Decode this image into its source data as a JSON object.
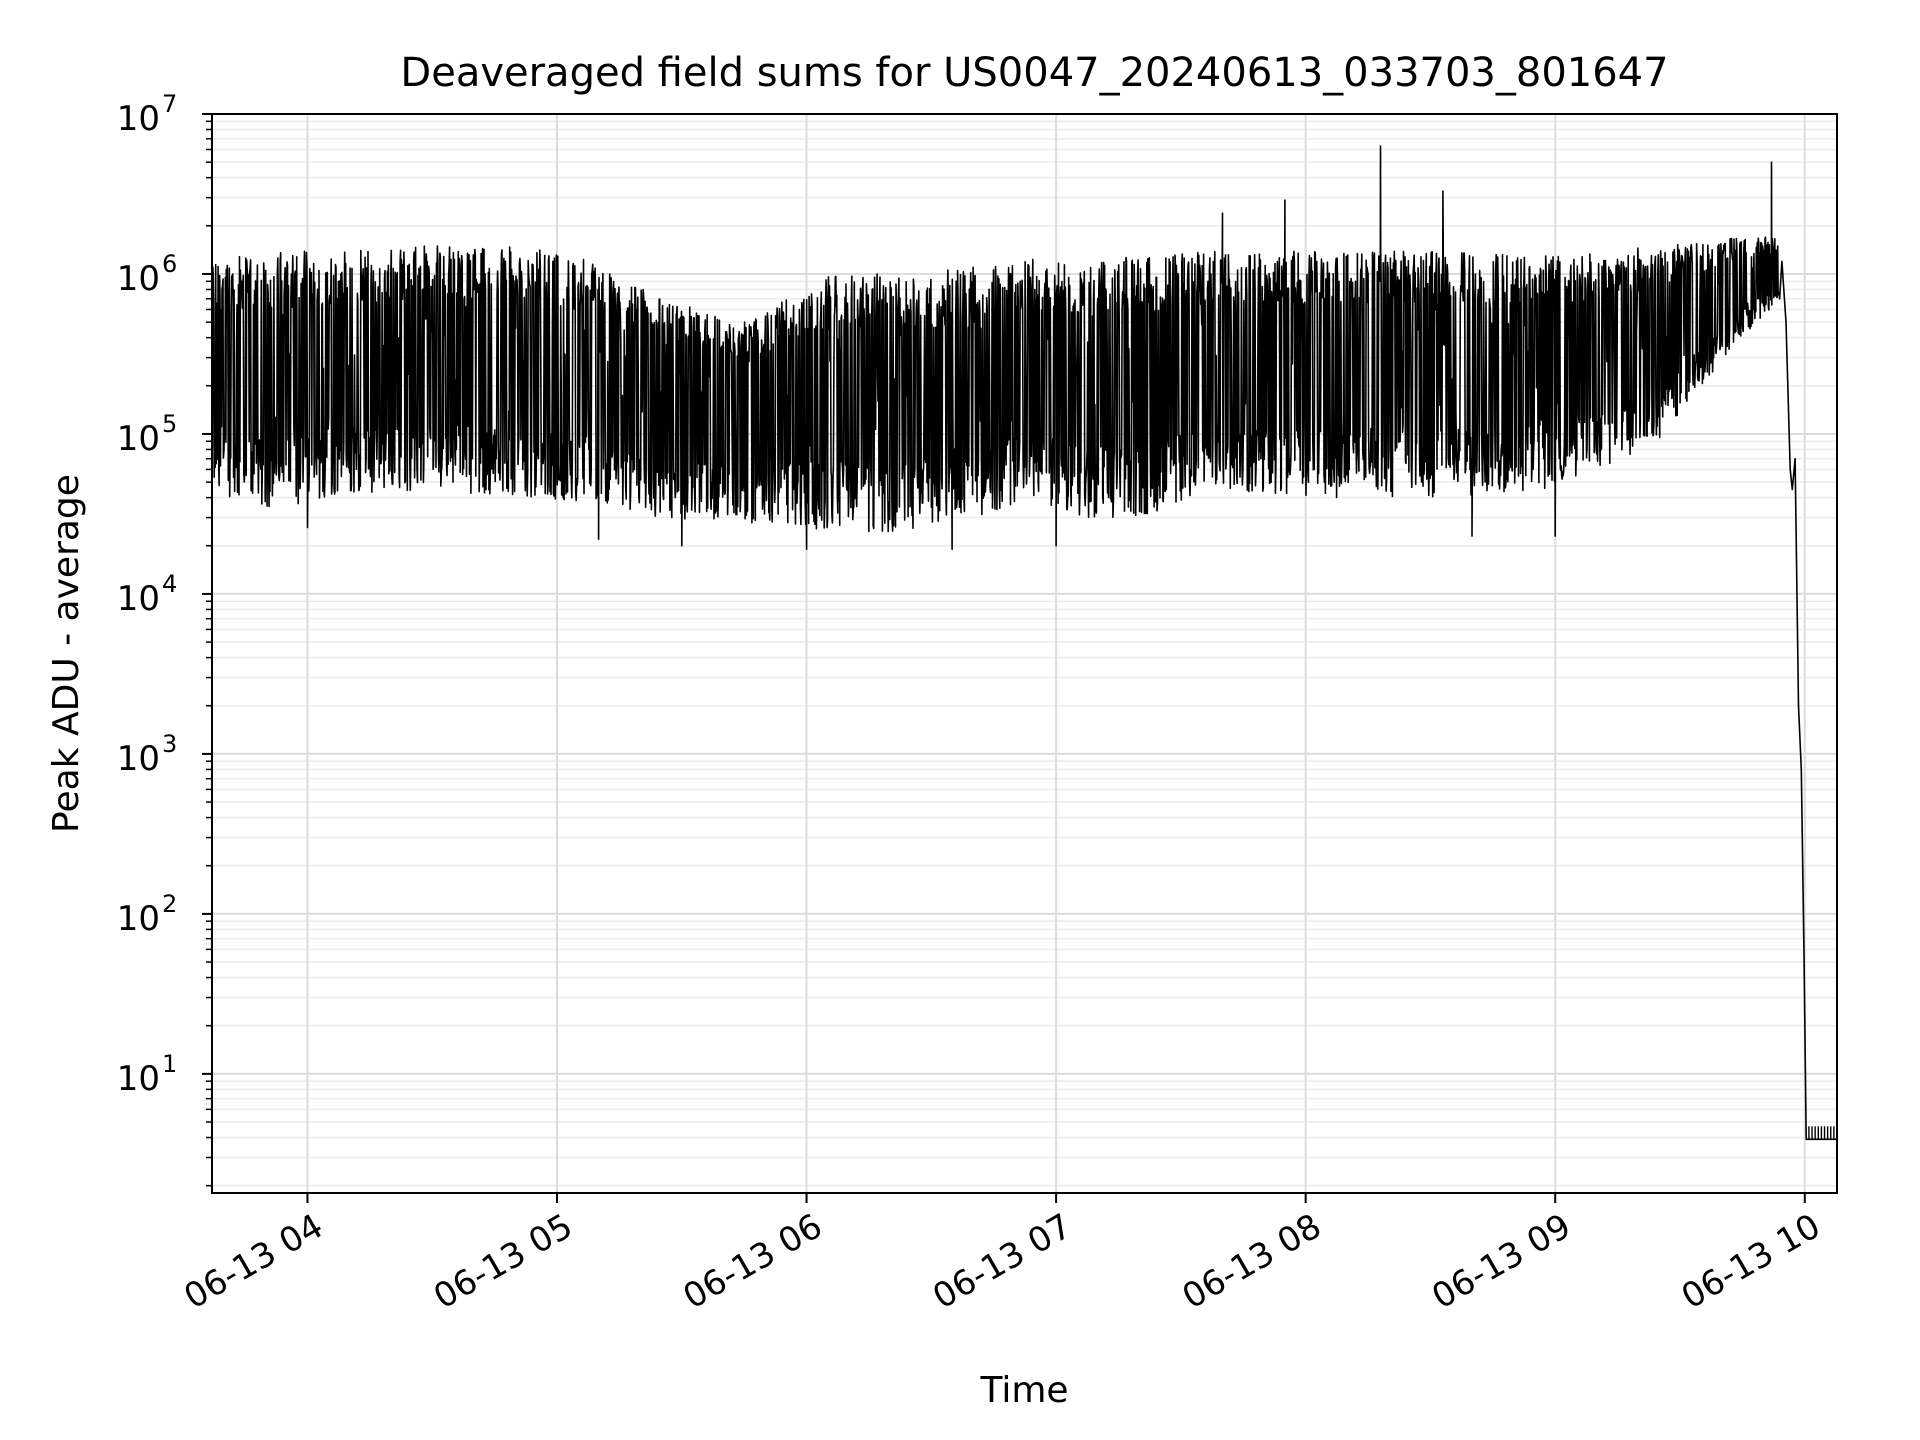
{
  "chart_data": {
    "type": "line",
    "title": "Deaveraged field sums for US0047_20240613_033703_801647",
    "xlabel": "Time",
    "ylabel": "Peak ADU - average",
    "yscale": "log",
    "ylim": [
      1.8,
      10000000
    ],
    "xlim": [
      "2024-06-13 03:37:03",
      "2024-06-13 10:07:45"
    ],
    "x_ticks": [
      {
        "value": "2024-06-13 04:00",
        "label": "06-13 04"
      },
      {
        "value": "2024-06-13 05:00",
        "label": "06-13 05"
      },
      {
        "value": "2024-06-13 06:00",
        "label": "06-13 06"
      },
      {
        "value": "2024-06-13 07:00",
        "label": "06-13 07"
      },
      {
        "value": "2024-06-13 08:00",
        "label": "06-13 08"
      },
      {
        "value": "2024-06-13 09:00",
        "label": "06-13 09"
      },
      {
        "value": "2024-06-13 10:00",
        "label": "06-13 10"
      }
    ],
    "y_ticks": [
      {
        "value": 10,
        "base": "10",
        "exp": "1"
      },
      {
        "value": 100,
        "base": "10",
        "exp": "2"
      },
      {
        "value": 1000,
        "base": "10",
        "exp": "3"
      },
      {
        "value": 10000,
        "base": "10",
        "exp": "4"
      },
      {
        "value": 100000,
        "base": "10",
        "exp": "5"
      },
      {
        "value": 1000000,
        "base": "10",
        "exp": "6"
      },
      {
        "value": 10000000,
        "base": "10",
        "exp": "7"
      }
    ],
    "grid": true,
    "series": [
      {
        "color": "#000000",
        "envelope": [
          {
            "t": "2024-06-13 03:37",
            "low": 45000,
            "high": 1200000
          },
          {
            "t": "2024-06-13 03:50",
            "low": 32000,
            "high": 1400000
          },
          {
            "t": "2024-06-13 04:05",
            "low": 40000,
            "high": 1400000
          },
          {
            "t": "2024-06-13 04:30",
            "low": 45000,
            "high": 1500000
          },
          {
            "t": "2024-06-13 04:50",
            "low": 40000,
            "high": 1500000
          },
          {
            "t": "2024-06-13 05:05",
            "low": 38000,
            "high": 1300000
          },
          {
            "t": "2024-06-13 05:25",
            "low": 30000,
            "high": 700000
          },
          {
            "t": "2024-06-13 05:45",
            "low": 28000,
            "high": 500000
          },
          {
            "t": "2024-06-13 06:05",
            "low": 25000,
            "high": 1000000
          },
          {
            "t": "2024-06-13 06:25",
            "low": 24000,
            "high": 1000000
          },
          {
            "t": "2024-06-13 06:40",
            "low": 30000,
            "high": 1100000
          },
          {
            "t": "2024-06-13 06:55",
            "low": 40000,
            "high": 1300000
          },
          {
            "t": "2024-06-13 07:05",
            "low": 30000,
            "high": 1200000
          },
          {
            "t": "2024-06-13 07:20",
            "low": 30000,
            "high": 1300000
          },
          {
            "t": "2024-06-13 07:40",
            "low": 45000,
            "high": 1400000
          },
          {
            "t": "2024-06-13 08:00",
            "low": 40000,
            "high": 1400000
          },
          {
            "t": "2024-06-13 08:30",
            "low": 40000,
            "high": 1400000
          },
          {
            "t": "2024-06-13 09:00",
            "low": 45000,
            "high": 1300000
          },
          {
            "t": "2024-06-13 09:25",
            "low": 90000,
            "high": 1500000
          },
          {
            "t": "2024-06-13 09:45",
            "low": 400000,
            "high": 1700000
          },
          {
            "t": "2024-06-13 09:54",
            "low": 700000,
            "high": 1700000
          }
        ],
        "spikes": [
          {
            "t": "2024-06-13 07:40",
            "value": 2400000
          },
          {
            "t": "2024-06-13 07:55",
            "value": 2900000
          },
          {
            "t": "2024-06-13 08:18",
            "value": 6300000
          },
          {
            "t": "2024-06-13 08:33",
            "value": 3300000
          },
          {
            "t": "2024-06-13 09:52",
            "value": 5000000
          }
        ],
        "dips": [
          {
            "t": "2024-06-13 04:00",
            "value": 26000
          },
          {
            "t": "2024-06-13 05:10",
            "value": 22000
          },
          {
            "t": "2024-06-13 05:30",
            "value": 20000
          },
          {
            "t": "2024-06-13 06:00",
            "value": 19000
          },
          {
            "t": "2024-06-13 06:35",
            "value": 19000
          },
          {
            "t": "2024-06-13 07:00",
            "value": 20000
          },
          {
            "t": "2024-06-13 08:40",
            "value": 23000
          },
          {
            "t": "2024-06-13 09:00",
            "value": 23000
          }
        ],
        "tail": [
          {
            "t": "2024-06-13 09:54:30",
            "value": 1200000
          },
          {
            "t": "2024-06-13 09:55:30",
            "value": 500000
          },
          {
            "t": "2024-06-13 09:56:30",
            "value": 60000
          },
          {
            "t": "2024-06-13 09:57:00",
            "value": 45000
          },
          {
            "t": "2024-06-13 09:57:40",
            "value": 70000
          },
          {
            "t": "2024-06-13 09:58:30",
            "value": 2000
          },
          {
            "t": "2024-06-13 09:59:10",
            "value": 800
          },
          {
            "t": "2024-06-13 09:59:30",
            "value": 200
          },
          {
            "t": "2024-06-13 09:59:50",
            "value": 50
          },
          {
            "t": "2024-06-13 10:00:20",
            "value": 3.9
          },
          {
            "t": "2024-06-13 10:07:45",
            "value": 3.9
          }
        ],
        "floor_value": 3.9,
        "floor_spike_value": 4.7
      }
    ]
  }
}
